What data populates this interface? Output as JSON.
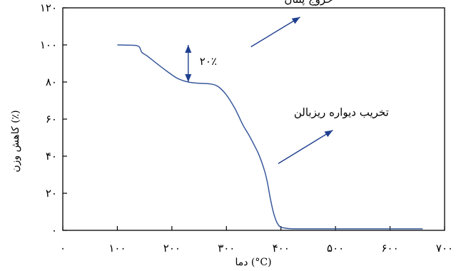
{
  "chart_data": {
    "type": "line",
    "xlabel": "دما (°C)",
    "ylabel": "کاهش وزن (٪)",
    "xlim": [
      0,
      700
    ],
    "ylim": [
      0,
      120
    ],
    "x_ticks": [
      {
        "value": 0,
        "label": "۰"
      },
      {
        "value": 100,
        "label": "۱۰۰"
      },
      {
        "value": 200,
        "label": "۲۰۰"
      },
      {
        "value": 300,
        "label": "۳۰۰"
      },
      {
        "value": 400,
        "label": "۴۰۰"
      },
      {
        "value": 500,
        "label": "۵۰۰"
      },
      {
        "value": 600,
        "label": "۶۰۰"
      },
      {
        "value": 700,
        "label": "۷۰۰"
      }
    ],
    "y_ticks": [
      {
        "value": 0,
        "label": "۰"
      },
      {
        "value": 20,
        "label": "۲۰"
      },
      {
        "value": 40,
        "label": "۴۰"
      },
      {
        "value": 60,
        "label": "۶۰"
      },
      {
        "value": 80,
        "label": "۸۰"
      },
      {
        "value": 100,
        "label": "۱۰۰"
      },
      {
        "value": 120,
        "label": "۱۲۰"
      }
    ],
    "grid": false,
    "line_color": "#3a5a9c",
    "arrow_color": "#1f3f8f",
    "series": [
      {
        "x": [
          100,
          130,
          140,
          145,
          155,
          170,
          190,
          210,
          230,
          250,
          270,
          285,
          300,
          315,
          330,
          340,
          350,
          360,
          370,
          375,
          380,
          385,
          390,
          395,
          400,
          410,
          420,
          450,
          500,
          560,
          600,
          660
        ],
        "y": [
          100,
          99.8,
          99,
          96,
          94,
          90.5,
          86,
          82,
          80,
          79.3,
          79,
          77.5,
          73,
          66,
          57,
          52,
          46.5,
          40.5,
          32,
          26,
          18,
          11,
          6,
          3,
          1.7,
          1.1,
          0.9,
          0.8,
          0.8,
          0.8,
          0.8,
          0.8
        ]
      }
    ],
    "annotations": [
      {
        "text": "خروج پنتان",
        "arrow_from": [
          345,
          99
        ],
        "arrow_to": [
          435,
          115
        ]
      },
      {
        "text": "تخریب دیواره ریزبالن",
        "arrow_from": [
          395,
          36
        ],
        "arrow_to": [
          495,
          54
        ]
      },
      {
        "text": "۲۰٪",
        "double_arrow_x": 230,
        "double_arrow_from": 100,
        "double_arrow_to": 80
      }
    ]
  }
}
